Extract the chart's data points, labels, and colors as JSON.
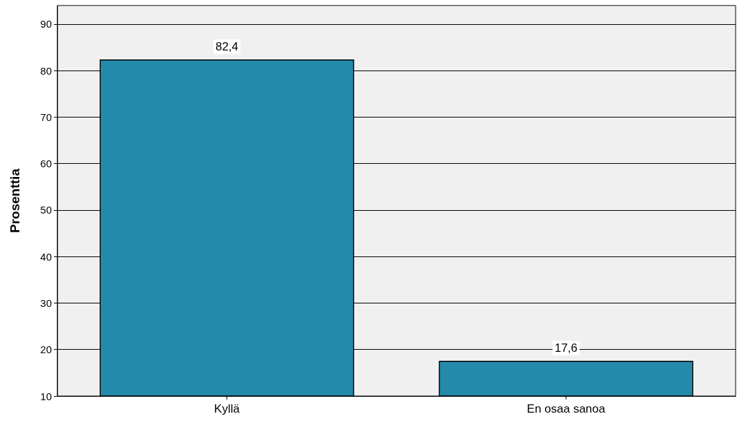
{
  "chart_data": {
    "type": "bar",
    "ylabel": "Prosenttia",
    "categories": [
      "Kyllä",
      "En osaa sanoa"
    ],
    "values": [
      82.4,
      17.6
    ],
    "color": "#248aaa",
    "value_labels": [
      "82,4",
      "17,6"
    ],
    "ylim": [
      10,
      94
    ],
    "yticks": [
      10,
      20,
      30,
      40,
      50,
      60,
      70,
      80,
      90
    ],
    "grid": "y"
  }
}
